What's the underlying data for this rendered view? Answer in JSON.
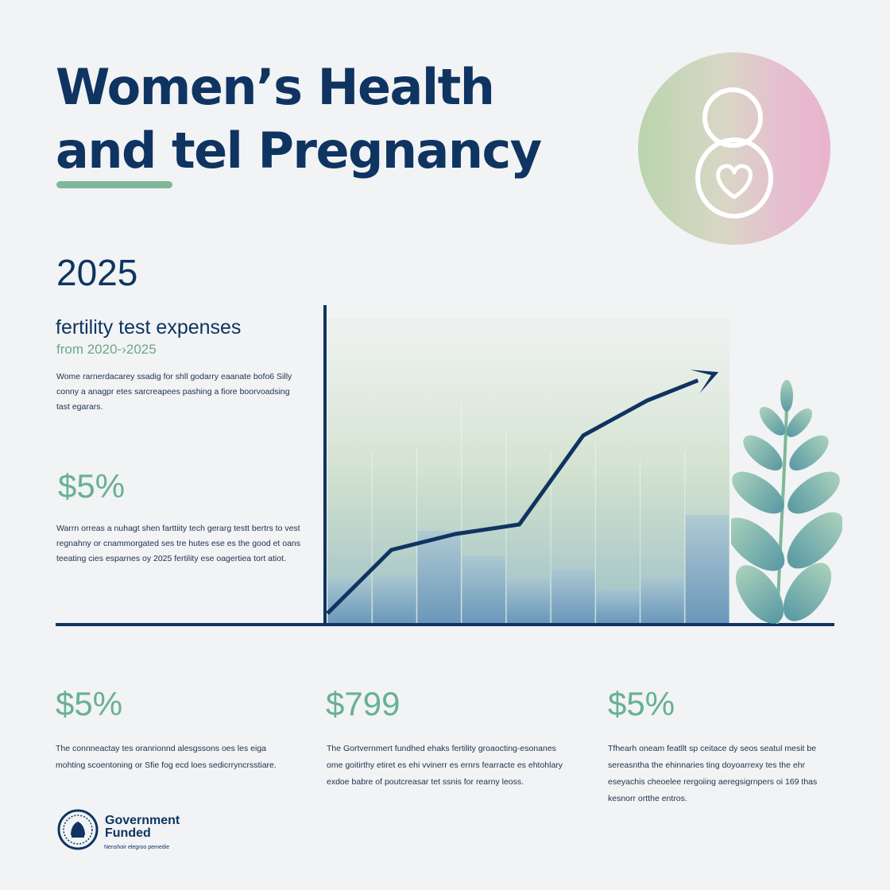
{
  "header": {
    "title_line1": "Women’s Health",
    "title_line2": "and tel Pregnancy"
  },
  "badge": {
    "icon": "pregnancy-heart-icon"
  },
  "left_panel": {
    "year": "2025",
    "subtitle": "fertility test expenses",
    "range": "from 2020-›2025",
    "para1": "Wome rarnerdacarey ssadig for shll godarry eaanate bofo6 Silly conny a anagpr etes sarcreapees pashing a fiore boorvoadsing tast egarars.",
    "stat": "$5%",
    "para2": "Warrn orreas a nuhagt shen farttiity tech gerarg testt bertrs to vest regnahny or cnammorgated ses tre hutes ese es the good et oans teeating cies esparnes oy 2025 fertility ese oagertiea tort atiot."
  },
  "bottom_stats": [
    {
      "value": "$5%",
      "text": "The connneactay tes oranrionnd alesgssons oes les eiga mohting scoentoning or Sfie fog ecd loes sedicrryncrsstiare."
    },
    {
      "value": "$799",
      "text": "The Gortvernmert fundhed ehaks fertility groaocting-esonanes ome goitirthy etiret es ehi vvinerr es ernrs fearracte es ehtohlary exdoe babre of poutcreasar tet ssnis for rearny leoss."
    },
    {
      "value": "$5%",
      "text": "Tfhearh oneam featllt sp ceitace dy seos seatul mesit be sereasntha the ehinnaries ting doyoarrexy tes the ehr eseyachis cheoelee rergoiing aeregsigrnpers oi 169 thas kesnorr ortthe entros."
    }
  ],
  "footer": {
    "name_line1": "Government",
    "name_line2": "Funded",
    "small": "Nenshoir elegroo pemedie",
    "logo_icon": "government-seal-icon"
  },
  "decor": {
    "plant_icon": "plant-icon"
  },
  "colors": {
    "navy": "#0f3461",
    "accent_green": "#68b094",
    "underline_green": "#7fb79a",
    "bar_top": "#c2d6c6",
    "bar_bottom": "#5a8ab8"
  },
  "chart_data": {
    "type": "bar",
    "title": "",
    "xlabel": "",
    "ylabel": "",
    "categories": [
      "",
      "",
      "",
      "",
      "",
      "",
      "",
      "",
      ""
    ],
    "values": [
      14,
      15,
      29,
      21,
      14,
      17,
      11,
      14,
      34
    ],
    "trend_line": [
      3,
      23,
      28,
      31,
      59,
      70,
      78
    ],
    "ylim": [
      0,
      100
    ],
    "grid": false,
    "legend": "none"
  }
}
